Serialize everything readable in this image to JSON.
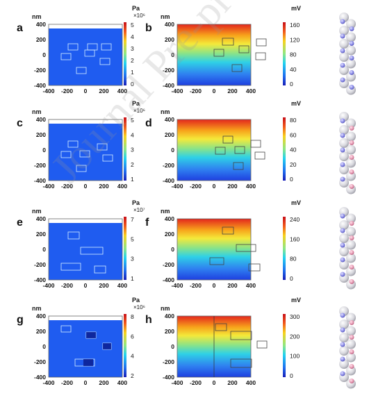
{
  "figure": {
    "watermark": "Journal Pre-proof",
    "panels": [
      {
        "letter": "a",
        "kind": "stress",
        "unit": "Pa",
        "exponent": "×10⁶",
        "cbar_ticks": [
          "5",
          "4",
          "3",
          "2",
          "1",
          "0"
        ],
        "axis_unit": "nm",
        "x_ticks": [
          "-400",
          "-200",
          "0",
          "200",
          "400"
        ],
        "y_ticks": [
          "400",
          "200",
          "0",
          "-200",
          "-400"
        ]
      },
      {
        "letter": "b",
        "kind": "potential",
        "unit": "mV",
        "exponent": "",
        "cbar_ticks": [
          "160",
          "120",
          "80",
          "40",
          "0"
        ],
        "axis_unit": "nm",
        "x_ticks": [
          "-400",
          "-200",
          "0",
          "200",
          "400"
        ],
        "y_ticks": [
          "400",
          "200",
          "0",
          "-200",
          "-400"
        ]
      },
      {
        "letter": "c",
        "kind": "stress",
        "unit": "Pa",
        "exponent": "×10⁶",
        "cbar_ticks": [
          "5",
          "4",
          "3",
          "2",
          "1"
        ],
        "axis_unit": "nm",
        "x_ticks": [
          "-400",
          "-200",
          "0",
          "200",
          "400"
        ],
        "y_ticks": [
          "400",
          "200",
          "0",
          "-200",
          "-400"
        ]
      },
      {
        "letter": "d",
        "kind": "potential",
        "unit": "mV",
        "exponent": "",
        "cbar_ticks": [
          "80",
          "60",
          "40",
          "20",
          "0"
        ],
        "axis_unit": "nm",
        "x_ticks": [
          "-400",
          "-200",
          "0",
          "200",
          "400"
        ],
        "y_ticks": [
          "400",
          "200",
          "0",
          "-200",
          "-400"
        ]
      },
      {
        "letter": "e",
        "kind": "stress",
        "unit": "Pa",
        "exponent": "×10⁷",
        "cbar_ticks": [
          "7",
          "5",
          "3",
          "1"
        ],
        "axis_unit": "nm",
        "x_ticks": [
          "-400",
          "-200",
          "0",
          "200",
          "400"
        ],
        "y_ticks": [
          "400",
          "200",
          "0",
          "-200",
          "-400"
        ]
      },
      {
        "letter": "f",
        "kind": "potential",
        "unit": "mV",
        "exponent": "",
        "cbar_ticks": [
          "240",
          "160",
          "80",
          "0"
        ],
        "axis_unit": "nm",
        "x_ticks": [
          "-400",
          "-200",
          "0",
          "200",
          "400"
        ],
        "y_ticks": [
          "400",
          "200",
          "0",
          "-200",
          "-400"
        ]
      },
      {
        "letter": "g",
        "kind": "stress",
        "unit": "Pa",
        "exponent": "×10⁶",
        "cbar_ticks": [
          "8",
          "6",
          "4",
          "2"
        ],
        "axis_unit": "nm",
        "x_ticks": [
          "-400",
          "-200",
          "0",
          "200",
          "400"
        ],
        "y_ticks": [
          "400",
          "200",
          "0",
          "-200",
          "-400"
        ]
      },
      {
        "letter": "h",
        "kind": "potential",
        "unit": "mV",
        "exponent": "",
        "cbar_ticks": [
          "300",
          "200",
          "100",
          "0"
        ],
        "axis_unit": "nm",
        "x_ticks": [
          "-400",
          "-200",
          "0",
          "200",
          "400"
        ],
        "y_ticks": [
          "400",
          "200",
          "0",
          "-200",
          "-400"
        ]
      }
    ],
    "colors": {
      "stress_field": "#1f5cf0",
      "text": "#111111"
    }
  }
}
